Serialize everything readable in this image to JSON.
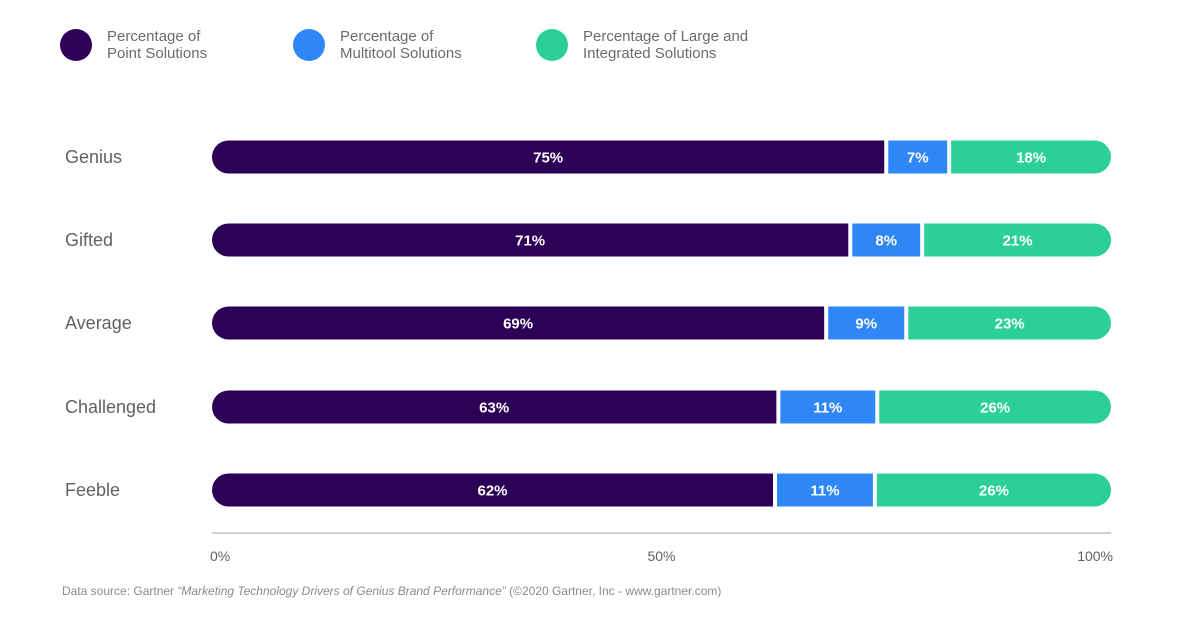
{
  "chart_data": {
    "type": "bar",
    "orientation": "horizontal",
    "stacked": true,
    "categories": [
      "Genius",
      "Gifted",
      "Average",
      "Challenged",
      "Feeble"
    ],
    "series": [
      {
        "name": "Percentage of\nPoint Solutions",
        "color": "#2d0057",
        "values": [
          75,
          71,
          69,
          63,
          62
        ],
        "labels": [
          "75%",
          "71%",
          "69%",
          "63%",
          "62%"
        ]
      },
      {
        "name": "Percentage of\nMultitool Solutions",
        "color": "#2f86f6",
        "values": [
          7,
          8,
          9,
          11,
          11
        ],
        "labels": [
          "7%",
          "8%",
          "9%",
          "11%",
          "11%"
        ]
      },
      {
        "name": "Percentage of Large and\nIntegrated Solutions",
        "color": "#2bd097",
        "values": [
          18,
          21,
          23,
          26,
          26
        ],
        "labels": [
          "18%",
          "21%",
          "23%",
          "26%",
          "26%"
        ]
      }
    ],
    "xlim": [
      0,
      100
    ],
    "xticks": [
      0,
      50,
      100
    ],
    "xtick_labels": [
      "0%",
      "50%",
      "100%"
    ],
    "legend_position": "top-left",
    "grid": false
  },
  "source": {
    "prefix": "Data source: Gartner ",
    "title": "“Marketing Technology Drivers of Genius Brand Performance”",
    "suffix": " (©2020 Gartner, Inc - www.gartner.com)"
  }
}
